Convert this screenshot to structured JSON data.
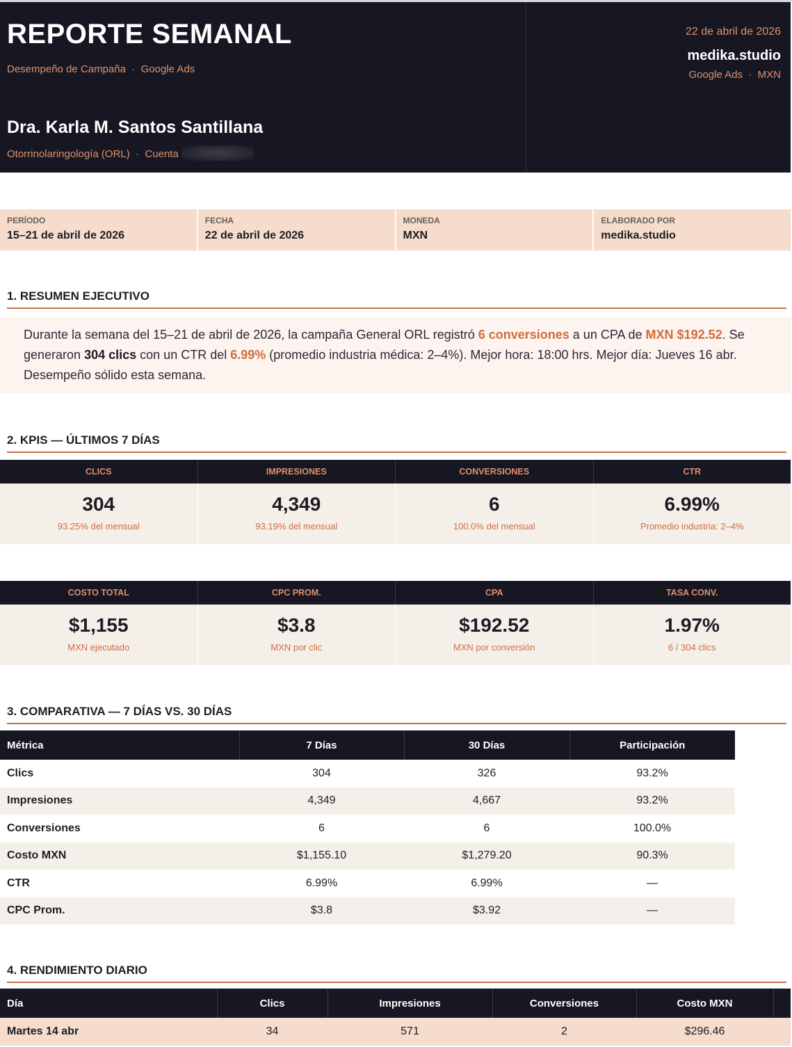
{
  "header": {
    "title": "REPORTE SEMANAL",
    "subtitle": "Desempeño de Campaña  ·  Google Ads",
    "client_name": "Dra. Karla M. Santos Santillana",
    "specialty": "Otorrinolaringología (ORL)  ·  Cuenta",
    "date": "22 de abril de 2026",
    "brand": "medika.studio",
    "meta": "Google Ads  ·  MXN"
  },
  "info_bar": [
    {
      "label": "PERÍODO",
      "value": "15–21 de abril de 2026"
    },
    {
      "label": "FECHA",
      "value": "22 de abril de 2026"
    },
    {
      "label": "MONEDA",
      "value": "MXN"
    },
    {
      "label": "ELABORADO POR",
      "value": "medika.studio"
    }
  ],
  "sections": {
    "s1": "1. RESUMEN EJECUTIVO",
    "s2": "2. KPIS — ÚLTIMOS 7 DÍAS",
    "s3": "3. COMPARATIVA — 7 DÍAS VS. 30 DÍAS",
    "s4": "4. RENDIMIENTO DIARIO"
  },
  "summary": {
    "p1": "Durante la semana del 15–21 de abril de 2026, la campaña General ORL registró ",
    "conv": "6 conversiones",
    "p2": " a un CPA de ",
    "cpa": "MXN $192.52",
    "p3": ". Se generaron ",
    "clicks": "304 clics",
    "p4": " con un CTR del ",
    "ctr": "6.99%",
    "p5": " (promedio industria médica: 2–4%). Mejor hora: 18:00 hrs. Mejor día: Jueves 16 abr. Desempeño sólido esta semana."
  },
  "kpis_row1": [
    {
      "label": "CLICS",
      "value": "304",
      "note": "93.25% del mensual"
    },
    {
      "label": "IMPRESIONES",
      "value": "4,349",
      "note": "93.19% del mensual"
    },
    {
      "label": "CONVERSIONES",
      "value": "6",
      "note": "100.0% del mensual"
    },
    {
      "label": "CTR",
      "value": "6.99%",
      "note": "Promedio industria: 2–4%"
    }
  ],
  "kpis_row2": [
    {
      "label": "COSTO TOTAL",
      "value": "$1,155",
      "note": "MXN ejecutado"
    },
    {
      "label": "CPC PROM.",
      "value": "$3.8",
      "note": "MXN por clic"
    },
    {
      "label": "CPA",
      "value": "$192.52",
      "note": "MXN por conversión"
    },
    {
      "label": "TASA CONV.",
      "value": "1.97%",
      "note": "6 / 304 clics"
    }
  ],
  "comparison": {
    "headers": [
      "Métrica",
      "7 Días",
      "30 Días",
      "Participación"
    ],
    "rows": [
      [
        "Clics",
        "304",
        "326",
        "93.2%"
      ],
      [
        "Impresiones",
        "4,349",
        "4,667",
        "93.2%"
      ],
      [
        "Conversiones",
        "6",
        "6",
        "100.0%"
      ],
      [
        "Costo MXN",
        "$1,155.10",
        "$1,279.20",
        "90.3%"
      ],
      [
        "CTR",
        "6.99%",
        "6.99%",
        "—"
      ],
      [
        "CPC Prom.",
        "$3.8",
        "$3.92",
        "—"
      ]
    ]
  },
  "daily": {
    "headers": [
      "Día",
      "Clics",
      "Impresiones",
      "Conversiones",
      "Costo MXN"
    ],
    "rows": [
      [
        "Martes 14 abr",
        "34",
        "571",
        "2",
        "$296.46"
      ]
    ]
  }
}
